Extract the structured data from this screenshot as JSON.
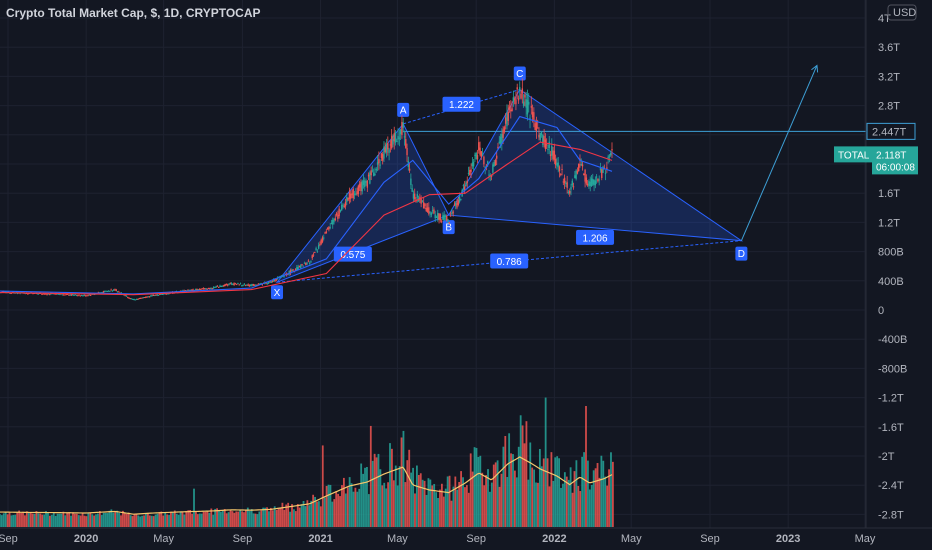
{
  "header": {
    "title": "Crypto Total Market Cap, $, 1D, CRYPTOCAP"
  },
  "axis": {
    "currency": "USD"
  },
  "price_tags": {
    "level_value": "2.447T",
    "symbol": "TOTAL",
    "last_value": "2.118T",
    "countdown": "06:00:08"
  },
  "chart_data": {
    "type": "line",
    "title": "Crypto Total Market Cap, $, 1D, CRYPTOCAP",
    "y_unit": "USD",
    "y_ticks": [
      "4T",
      "3.6T",
      "3.2T",
      "2.8T",
      "2.4T",
      "2T",
      "1.6T",
      "1.2T",
      "800B",
      "400B",
      "0",
      "-400B",
      "-800B",
      "-1.2T",
      "-1.6T",
      "-2T",
      "-2.4T",
      "-2.8T"
    ],
    "y_tick_values": [
      4,
      3.6,
      3.2,
      2.8,
      2.4,
      2.0,
      1.6,
      1.2,
      0.8,
      0.4,
      0,
      -0.4,
      -0.8,
      -1.2,
      -1.6,
      -2.0,
      -2.4,
      -2.8
    ],
    "ylim": [
      -3.0,
      4.1
    ],
    "x_ticks": [
      {
        "label": "Sep",
        "date": "2019-09-01"
      },
      {
        "label": "2020",
        "date": "2020-01-01"
      },
      {
        "label": "May",
        "date": "2020-05-01"
      },
      {
        "label": "Sep",
        "date": "2020-09-01"
      },
      {
        "label": "2021",
        "date": "2021-01-01"
      },
      {
        "label": "May",
        "date": "2021-05-01"
      },
      {
        "label": "Sep",
        "date": "2021-09-01"
      },
      {
        "label": "2022",
        "date": "2022-01-01"
      },
      {
        "label": "May",
        "date": "2022-05-01"
      },
      {
        "label": "Sep",
        "date": "2022-09-01"
      },
      {
        "label": "2023",
        "date": "2023-01-01"
      },
      {
        "label": "May",
        "date": "2023-05-01"
      }
    ],
    "xlim": [
      "2019-09-01",
      "2023-05-01"
    ],
    "price_series": {
      "name": "TOTAL",
      "points": [
        [
          "2019-08-15",
          0.25
        ],
        [
          "2019-10-01",
          0.23
        ],
        [
          "2019-11-15",
          0.22
        ],
        [
          "2020-01-01",
          0.2
        ],
        [
          "2020-02-15",
          0.28
        ],
        [
          "2020-03-15",
          0.14
        ],
        [
          "2020-04-15",
          0.2
        ],
        [
          "2020-06-01",
          0.26
        ],
        [
          "2020-07-15",
          0.3
        ],
        [
          "2020-08-15",
          0.36
        ],
        [
          "2020-09-15",
          0.34
        ],
        [
          "2020-10-15",
          0.38
        ],
        [
          "2020-11-15",
          0.52
        ],
        [
          "2020-12-15",
          0.66
        ],
        [
          "2021-01-10",
          1.05
        ],
        [
          "2021-02-15",
          1.55
        ],
        [
          "2021-03-15",
          1.75
        ],
        [
          "2021-04-10",
          2.15
        ],
        [
          "2021-05-10",
          2.5
        ],
        [
          "2021-05-25",
          1.6
        ],
        [
          "2021-06-20",
          1.35
        ],
        [
          "2021-07-20",
          1.22
        ],
        [
          "2021-08-15",
          1.7
        ],
        [
          "2021-09-05",
          2.2
        ],
        [
          "2021-09-25",
          1.85
        ],
        [
          "2021-10-20",
          2.65
        ],
        [
          "2021-11-08",
          3.0
        ],
        [
          "2021-11-25",
          2.7
        ],
        [
          "2021-12-10",
          2.4
        ],
        [
          "2022-01-05",
          2.05
        ],
        [
          "2022-01-25",
          1.62
        ],
        [
          "2022-02-10",
          2.0
        ],
        [
          "2022-02-25",
          1.7
        ],
        [
          "2022-03-20",
          1.92
        ],
        [
          "2022-04-01",
          2.12
        ]
      ]
    },
    "moving_averages": [
      {
        "color": "#2962ff",
        "points": [
          [
            "2019-08-15",
            0.26
          ],
          [
            "2020-03-15",
            0.22
          ],
          [
            "2020-09-15",
            0.3
          ],
          [
            "2021-01-10",
            0.7
          ],
          [
            "2021-04-10",
            1.75
          ],
          [
            "2021-05-25",
            2.05
          ],
          [
            "2021-07-20",
            1.45
          ],
          [
            "2021-09-05",
            1.8
          ],
          [
            "2021-11-08",
            2.65
          ],
          [
            "2022-01-05",
            2.5
          ],
          [
            "2022-02-10",
            2.05
          ],
          [
            "2022-04-01",
            1.9
          ]
        ]
      },
      {
        "color": "#f23645",
        "points": [
          [
            "2019-08-15",
            0.24
          ],
          [
            "2020-03-15",
            0.21
          ],
          [
            "2020-09-15",
            0.28
          ],
          [
            "2021-01-10",
            0.5
          ],
          [
            "2021-04-10",
            1.3
          ],
          [
            "2021-06-20",
            1.58
          ],
          [
            "2021-08-15",
            1.6
          ],
          [
            "2021-10-20",
            2.0
          ],
          [
            "2021-12-10",
            2.3
          ],
          [
            "2022-02-10",
            2.2
          ],
          [
            "2022-04-01",
            2.05
          ]
        ]
      }
    ],
    "pattern": {
      "points": [
        {
          "label": "X",
          "date": "2020-10-25",
          "value": 0.38
        },
        {
          "label": "A",
          "date": "2021-05-10",
          "value": 2.55
        },
        {
          "label": "B",
          "date": "2021-07-20",
          "value": 1.3
        },
        {
          "label": "C",
          "date": "2021-11-08",
          "value": 3.02
        },
        {
          "label": "D",
          "date": "2022-10-20",
          "value": 0.95
        }
      ],
      "ratios": [
        {
          "text": "1.222",
          "between": "A-C"
        },
        {
          "text": "0.575",
          "between": "X-B"
        },
        {
          "text": "1.206",
          "between": "B-D"
        },
        {
          "text": "0.786",
          "between": "X-D"
        }
      ],
      "projection_end": {
        "date": "2023-02-15",
        "value": 3.35
      },
      "horizontal_level": 2.447
    },
    "volume": {
      "name": "Volume",
      "description": "daily volume histogram with moving average"
    }
  }
}
